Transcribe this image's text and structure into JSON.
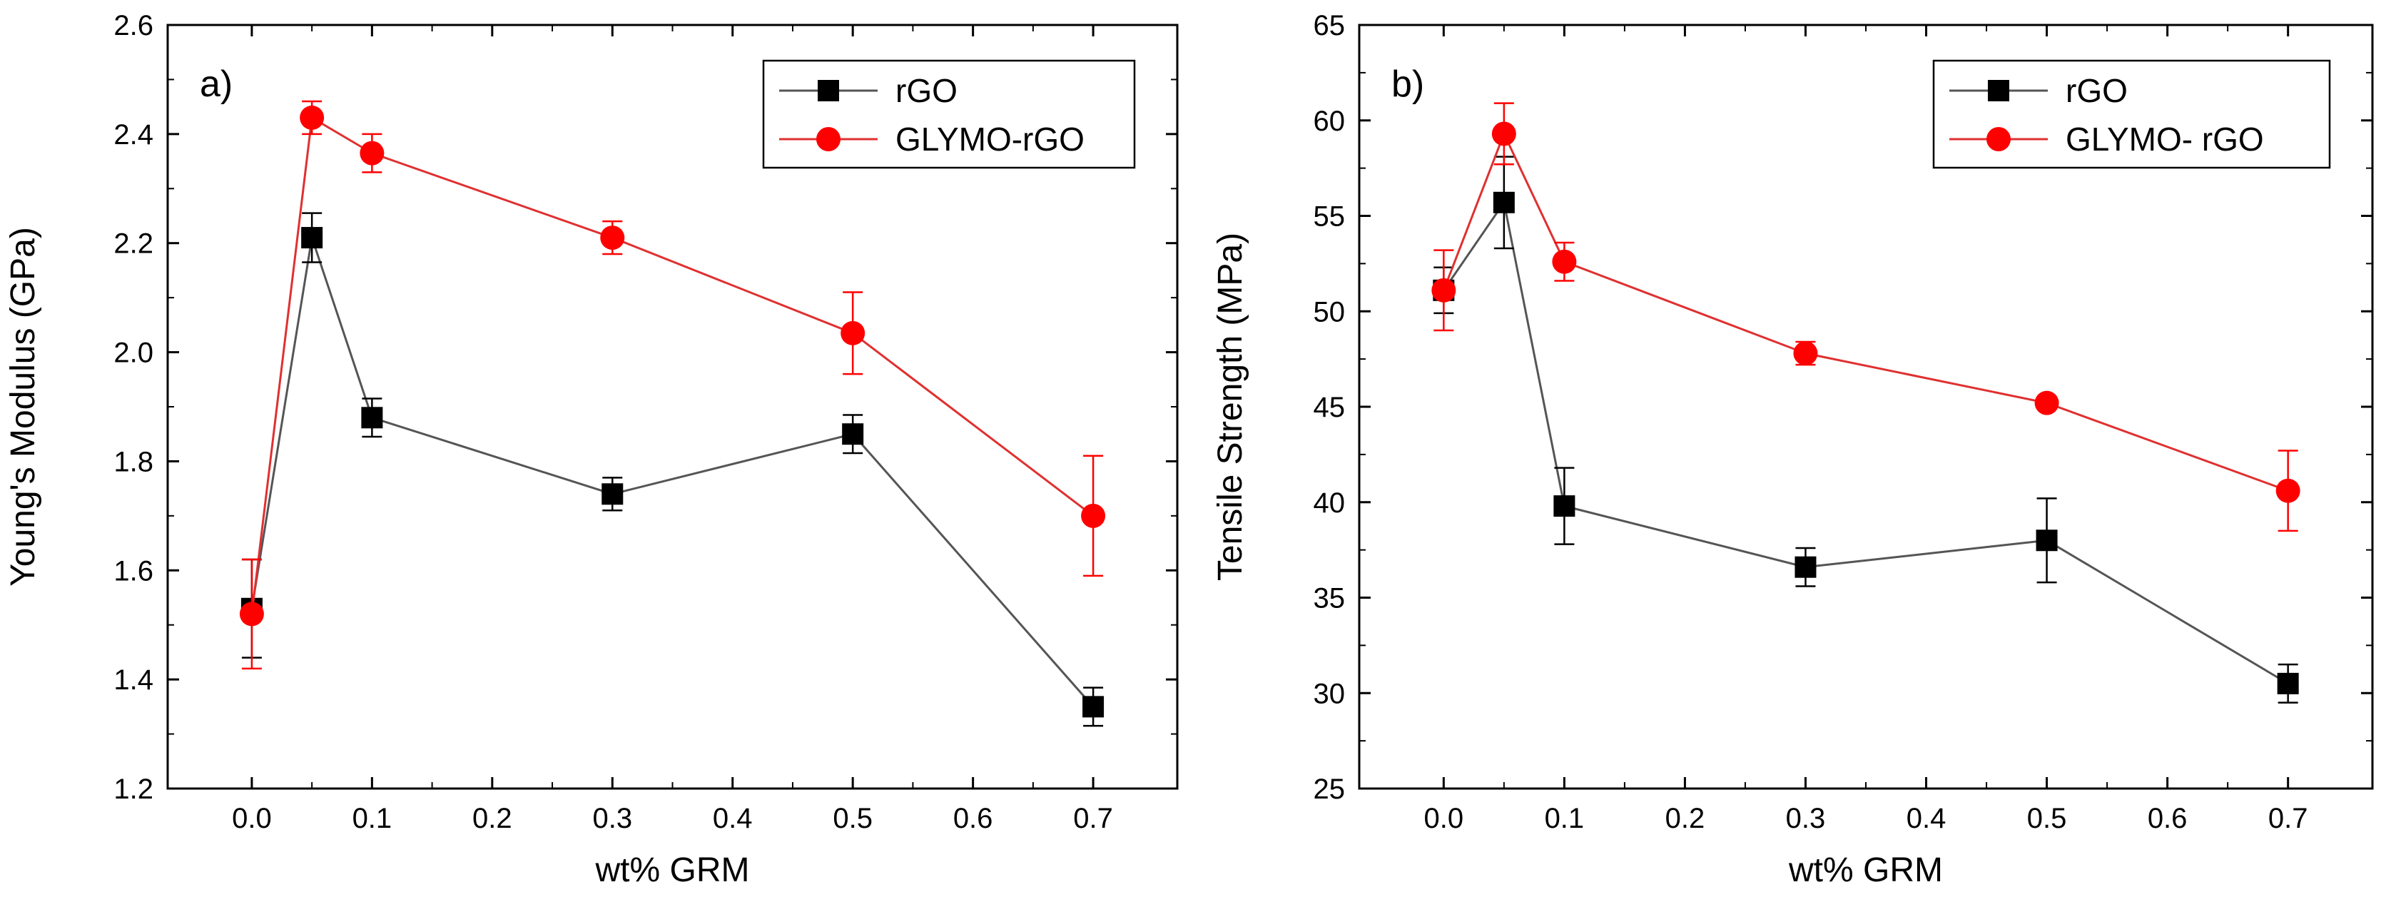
{
  "chart_data": [
    {
      "type": "line",
      "panel_label": "a)",
      "title": "",
      "xlabel": "wt% GRM",
      "ylabel": "Young's Modulus (GPa)",
      "xlim": [
        -0.07,
        0.77
      ],
      "ylim": [
        1.2,
        2.6
      ],
      "xticks": [
        0.0,
        0.1,
        0.2,
        0.3,
        0.4,
        0.5,
        0.6,
        0.7
      ],
      "xtick_labels": [
        "0.0",
        "0.1",
        "0.2",
        "0.3",
        "0.4",
        "0.5",
        "0.6",
        "0.7"
      ],
      "yticks": [
        1.2,
        1.4,
        1.6,
        1.8,
        2.0,
        2.2,
        2.4,
        2.6
      ],
      "ytick_labels": [
        "1.2",
        "1.4",
        "1.6",
        "1.8",
        "2.0",
        "2.2",
        "2.4",
        "2.6"
      ],
      "legend_position": "top-right",
      "grid": false,
      "x": [
        0.0,
        0.05,
        0.1,
        0.3,
        0.5,
        0.7
      ],
      "series": [
        {
          "name": "rGO",
          "color": "#000000",
          "line_color": "#555555",
          "marker": "square",
          "values": [
            1.53,
            2.21,
            1.88,
            1.74,
            1.85,
            1.35
          ],
          "errors": [
            0.09,
            0.045,
            0.035,
            0.03,
            0.035,
            0.035
          ]
        },
        {
          "name": "GLYMO-rGO",
          "color": "#ff0000",
          "line_color": "#e03030",
          "marker": "circle",
          "values": [
            1.52,
            2.43,
            2.365,
            2.21,
            2.035,
            1.7
          ],
          "errors": [
            0.1,
            0.03,
            0.035,
            0.03,
            0.075,
            0.11
          ]
        }
      ]
    },
    {
      "type": "line",
      "panel_label": "b)",
      "title": "",
      "xlabel": "wt% GRM",
      "ylabel": "Tensile Strength (MPa)",
      "xlim": [
        -0.07,
        0.77
      ],
      "ylim": [
        25,
        65
      ],
      "xticks": [
        0.0,
        0.1,
        0.2,
        0.3,
        0.4,
        0.5,
        0.6,
        0.7
      ],
      "xtick_labels": [
        "0.0",
        "0.1",
        "0.2",
        "0.3",
        "0.4",
        "0.5",
        "0.6",
        "0.7"
      ],
      "yticks": [
        25,
        30,
        35,
        40,
        45,
        50,
        55,
        60,
        65
      ],
      "ytick_labels": [
        "25",
        "30",
        "35",
        "40",
        "45",
        "50",
        "55",
        "60",
        "65"
      ],
      "legend_position": "top-right",
      "grid": false,
      "x": [
        0.0,
        0.05,
        0.1,
        0.3,
        0.5,
        0.7
      ],
      "series": [
        {
          "name": "rGO",
          "color": "#000000",
          "line_color": "#555555",
          "marker": "square",
          "values": [
            51.1,
            55.7,
            39.8,
            36.6,
            38.0,
            30.5
          ],
          "errors": [
            1.2,
            2.4,
            2.0,
            1.0,
            2.2,
            1.0
          ]
        },
        {
          "name": "GLYMO- rGO",
          "color": "#ff0000",
          "line_color": "#e03030",
          "marker": "circle",
          "values": [
            51.1,
            59.3,
            52.6,
            47.8,
            45.2,
            40.6
          ],
          "errors": [
            2.1,
            1.6,
            1.0,
            0.6,
            0.3,
            2.1
          ]
        }
      ]
    }
  ]
}
